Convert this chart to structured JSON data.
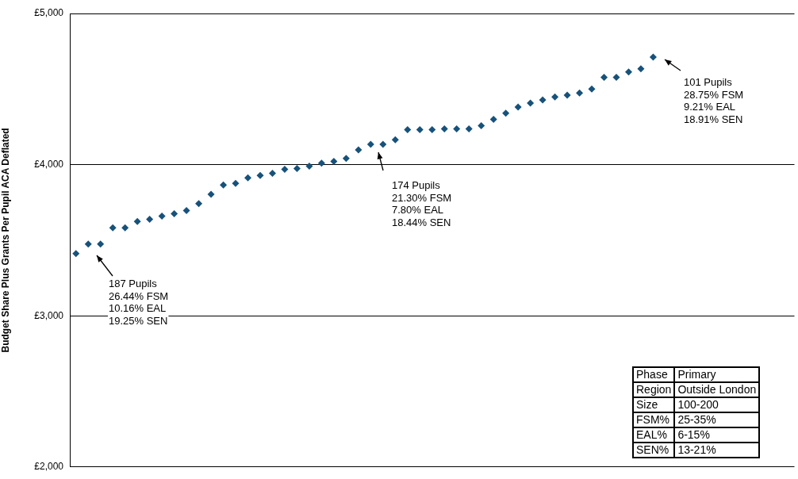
{
  "chart_data": {
    "type": "scatter",
    "ylabel": "Budget Share Plus Grants Per Pupil ACA Deflated",
    "categories": [
      null,
      null,
      null,
      null,
      null,
      null,
      null,
      null,
      null,
      null,
      null,
      null,
      null,
      null,
      null,
      null,
      null,
      null,
      null,
      null,
      null,
      null,
      null,
      null,
      null,
      null,
      null,
      null,
      null,
      null,
      null,
      null,
      null,
      null,
      null,
      null,
      null,
      null,
      null,
      null,
      null,
      null,
      null,
      null,
      null,
      null,
      null,
      null,
      null,
      null,
      null,
      null,
      null,
      null,
      null,
      null,
      null,
      null,
      null
    ],
    "series": [
      {
        "color": "#17527a",
        "values": [
          3412,
          3474,
          3474,
          3582,
          3582,
          3624,
          3639,
          3660,
          3675,
          3696,
          3742,
          3804,
          3866,
          3876,
          3912,
          3928,
          3943,
          3969,
          3974,
          3990,
          4010,
          4021,
          4041,
          4098,
          4134,
          4134,
          4165,
          4232,
          4232,
          4232,
          4237,
          4237,
          4237,
          4258,
          4299,
          4340,
          4381,
          4407,
          4428,
          4448,
          4459,
          4474,
          4500,
          4577,
          4577,
          4613,
          4634,
          4711,
          null,
          null,
          null,
          null,
          null,
          null,
          null,
          null,
          null,
          null,
          null
        ]
      }
    ],
    "ylim": [
      2000,
      5000
    ],
    "yticks": [
      {
        "value": 2000,
        "label": "£2,000"
      },
      {
        "value": 3000,
        "label": "£3,000"
      },
      {
        "value": 4000,
        "label": "£4,000"
      },
      {
        "value": 5000,
        "label": "£5,000"
      }
    ],
    "grid": "y",
    "marker": "diamond",
    "legend": false,
    "tick_labels": "y",
    "annotations": [
      "187 Pupils\n26.44% FSM\n10.16% EAL\n19.25% SEN",
      "174 Pupils\n21.30% FSM\n7.80% EAL\n18.44% SEN",
      "101 Pupils\n28.75% FSM\n9.21% EAL\n18.91% SEN",
      "Phase",
      "Primary",
      "Region",
      "Outside London",
      "Size",
      "100-200",
      "FSM%",
      "25-35%",
      "EAL%",
      "6-15%",
      "SEN%",
      "13-21%"
    ]
  }
}
